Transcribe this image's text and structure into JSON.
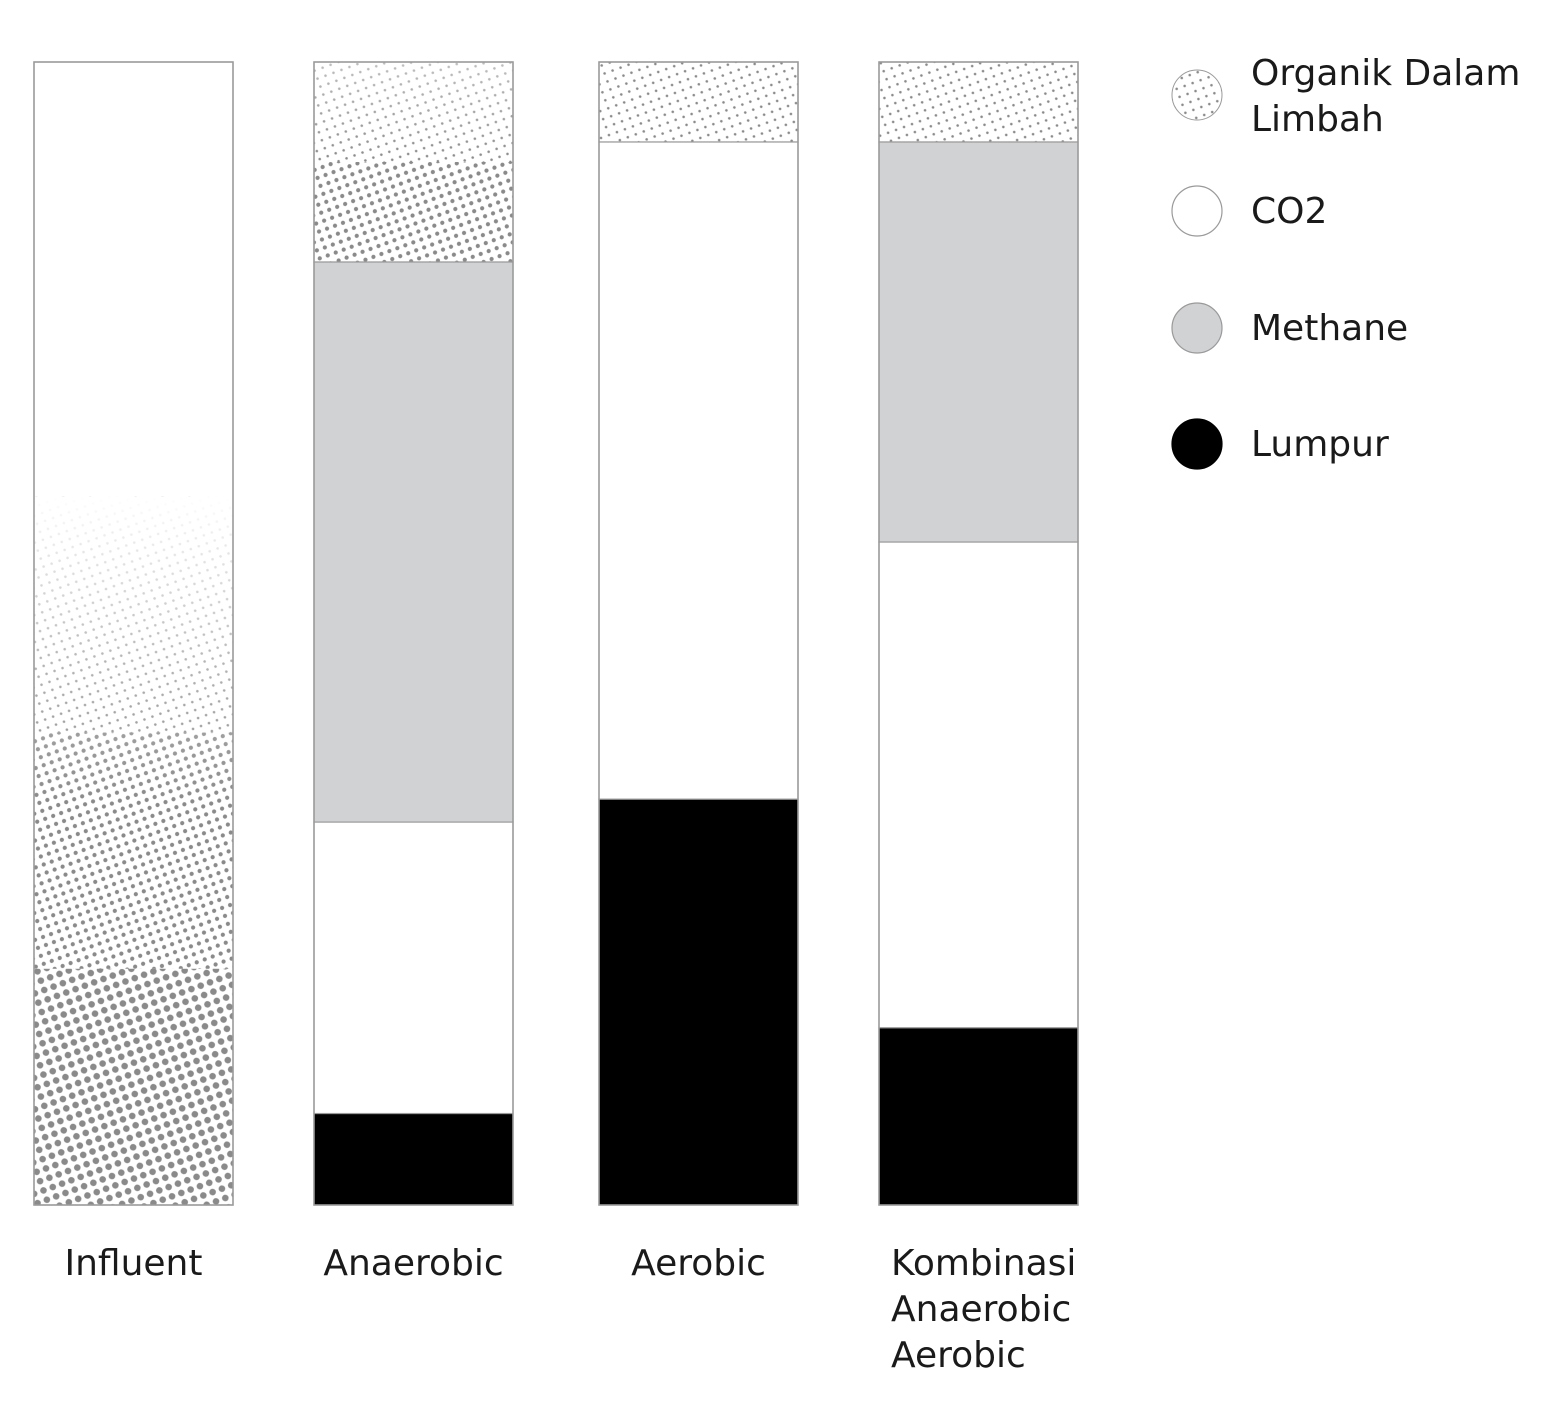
{
  "chart_data": {
    "type": "bar",
    "stacked": true,
    "normalized": true,
    "categories": [
      "Influent",
      "Anaerobic",
      "Aerobic",
      "Kombinasi Anaerobic Aerobic"
    ],
    "category_label_lines": [
      [
        "Influent"
      ],
      [
        "Anaerobic"
      ],
      [
        "Aerobic"
      ],
      [
        "Kombinasi",
        "Anaerobic",
        "Aerobic"
      ]
    ],
    "series": [
      {
        "name": "Organik Dalam Limbah",
        "name_lines": [
          "Organik Dalam",
          "Limbah"
        ],
        "key": "organik",
        "fill": "dots",
        "values": [
          1.0,
          0.175,
          0.07,
          0.07
        ]
      },
      {
        "name": "CO2",
        "name_lines": [
          "CO2"
        ],
        "key": "co2",
        "fill": "#ffffff",
        "values": [
          0,
          0.255,
          0.575,
          0.425
        ]
      },
      {
        "name": "Methane",
        "name_lines": [
          "Methane"
        ],
        "key": "methane",
        "fill": "#d1d2d4",
        "values": [
          0,
          0.49,
          0,
          0.35
        ]
      },
      {
        "name": "Lumpur",
        "name_lines": [
          "Lumpur"
        ],
        "key": "lumpur",
        "fill": "#000000",
        "values": [
          0,
          0.08,
          0.355,
          0.155
        ]
      }
    ],
    "stack_order_top_to_bottom": [
      [
        "organik"
      ],
      [
        "organik",
        "methane",
        "co2",
        "lumpur"
      ],
      [
        "organik",
        "co2",
        "lumpur"
      ],
      [
        "organik",
        "methane",
        "co2",
        "lumpur"
      ]
    ],
    "legend_placement": "top-right",
    "axes_shown": false,
    "grid": false,
    "colors": {
      "dots": "#8a8a8a",
      "outline": "#9a9a9a",
      "methane": "#d1d2d4",
      "lumpur": "#000000"
    }
  }
}
